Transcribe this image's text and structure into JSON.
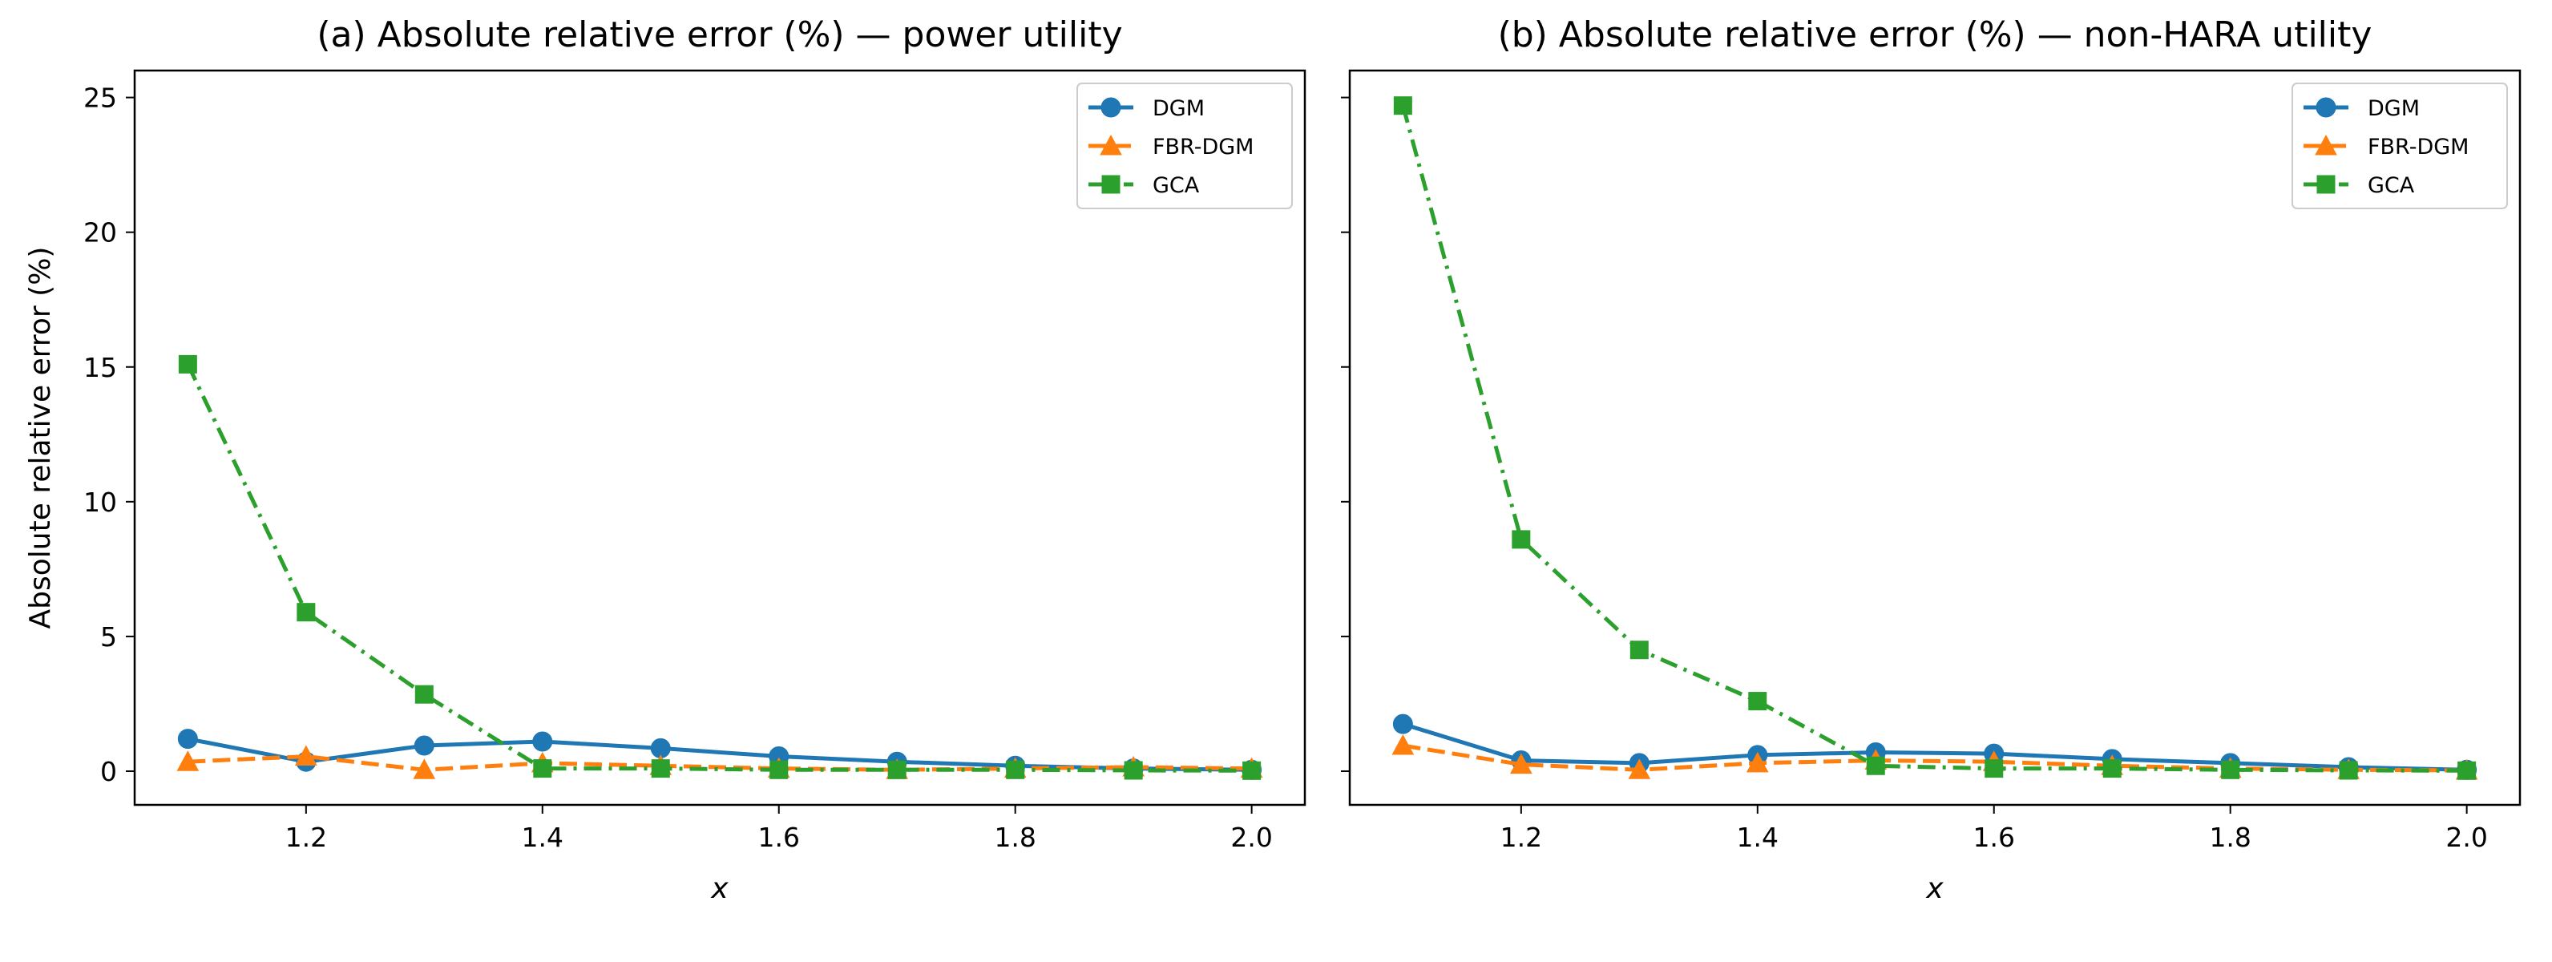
{
  "chart_data": [
    {
      "type": "line",
      "title": "(a) Absolute relative error (%) — power utility",
      "xlabel": "x",
      "ylabel": "Absolute relative error (%)",
      "x": [
        1.1,
        1.2,
        1.3,
        1.4,
        1.5,
        1.6,
        1.7,
        1.8,
        1.9,
        2.0
      ],
      "xlim": [
        1.055,
        2.045
      ],
      "ylim": [
        -1.25,
        26.0
      ],
      "xticks": [
        "1.2",
        "1.4",
        "1.6",
        "1.8",
        "2.0"
      ],
      "yticks": [
        "0",
        "5",
        "10",
        "15",
        "20",
        "25"
      ],
      "grid": false,
      "legend": "top-right",
      "series": [
        {
          "name": "DGM",
          "color": "#1f77b4",
          "linestyle": "solid",
          "marker": "circle",
          "values": [
            1.2,
            0.35,
            0.95,
            1.1,
            0.85,
            0.55,
            0.35,
            0.2,
            0.1,
            0.05
          ]
        },
        {
          "name": "FBR-DGM",
          "color": "#ff7f0e",
          "linestyle": "dashed",
          "marker": "triangle",
          "values": [
            0.35,
            0.55,
            0.05,
            0.3,
            0.2,
            0.1,
            0.05,
            0.1,
            0.15,
            0.1
          ]
        },
        {
          "name": "GCA",
          "color": "#2ca02c",
          "linestyle": "dashdot",
          "marker": "square",
          "values": [
            15.1,
            5.9,
            2.85,
            0.1,
            0.1,
            0.05,
            0.05,
            0.05,
            0.03,
            0.02
          ]
        }
      ]
    },
    {
      "type": "line",
      "title": "(b) Absolute relative error (%) — non-HARA utility",
      "xlabel": "x",
      "ylabel": "",
      "x": [
        1.1,
        1.2,
        1.3,
        1.4,
        1.5,
        1.6,
        1.7,
        1.8,
        1.9,
        2.0
      ],
      "xlim": [
        1.055,
        2.045
      ],
      "ylim": [
        -1.25,
        26.0
      ],
      "xticks": [
        "1.2",
        "1.4",
        "1.6",
        "1.8",
        "2.0"
      ],
      "yticks": [],
      "grid": false,
      "legend": "top-right",
      "series": [
        {
          "name": "DGM",
          "color": "#1f77b4",
          "linestyle": "solid",
          "marker": "circle",
          "values": [
            1.75,
            0.4,
            0.3,
            0.6,
            0.7,
            0.65,
            0.45,
            0.3,
            0.15,
            0.05
          ]
        },
        {
          "name": "FBR-DGM",
          "color": "#ff7f0e",
          "linestyle": "dashed",
          "marker": "triangle",
          "values": [
            0.95,
            0.25,
            0.05,
            0.3,
            0.4,
            0.35,
            0.2,
            0.1,
            0.05,
            0.03
          ]
        },
        {
          "name": "GCA",
          "color": "#2ca02c",
          "linestyle": "dashdot",
          "marker": "square",
          "values": [
            24.7,
            8.6,
            4.5,
            2.6,
            0.2,
            0.1,
            0.1,
            0.05,
            0.03,
            0.02
          ]
        }
      ]
    }
  ]
}
